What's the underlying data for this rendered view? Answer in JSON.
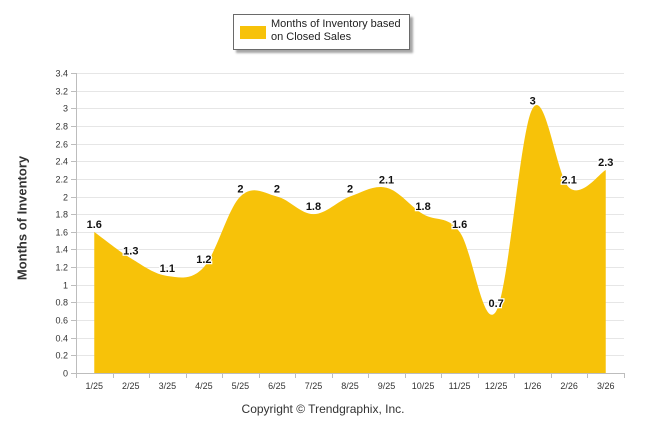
{
  "legend": {
    "label": "Months of Inventory based\non Closed Sales",
    "color": "#f7c209"
  },
  "copyright": "Copyright © Trendgraphix, Inc.",
  "chart_data": {
    "type": "area",
    "title": "",
    "xlabel": "",
    "ylabel": "Months of Inventory",
    "ylim": [
      0,
      3.4
    ],
    "ytick_step": 0.2,
    "yticks": [
      "0",
      "0.2",
      "0.4",
      "0.6",
      "0.8",
      "1",
      "1.2",
      "1.4",
      "1.6",
      "1.8",
      "2",
      "2.2",
      "2.4",
      "2.6",
      "2.8",
      "3",
      "3.2",
      "3.4"
    ],
    "categories": [
      "1/25",
      "2/25",
      "3/25",
      "4/25",
      "5/25",
      "6/25",
      "7/25",
      "8/25",
      "9/25",
      "10/25",
      "11/25",
      "12/25",
      "1/26",
      "2/26",
      "3/26"
    ],
    "series": [
      {
        "name": "Months of Inventory based on Closed Sales",
        "values": [
          1.6,
          1.3,
          1.1,
          1.2,
          2,
          2,
          1.8,
          2,
          2.1,
          1.8,
          1.6,
          0.7,
          3,
          2.1,
          2.3
        ],
        "labels": [
          "1.6",
          "1.3",
          "1.1",
          "1.2",
          "2",
          "2",
          "1.8",
          "2",
          "2.1",
          "1.8",
          "1.6",
          "0.7",
          "3",
          "2.1",
          "2.3"
        ],
        "color": "#f7c209"
      }
    ],
    "grid": true,
    "legend_position": "top-center"
  }
}
